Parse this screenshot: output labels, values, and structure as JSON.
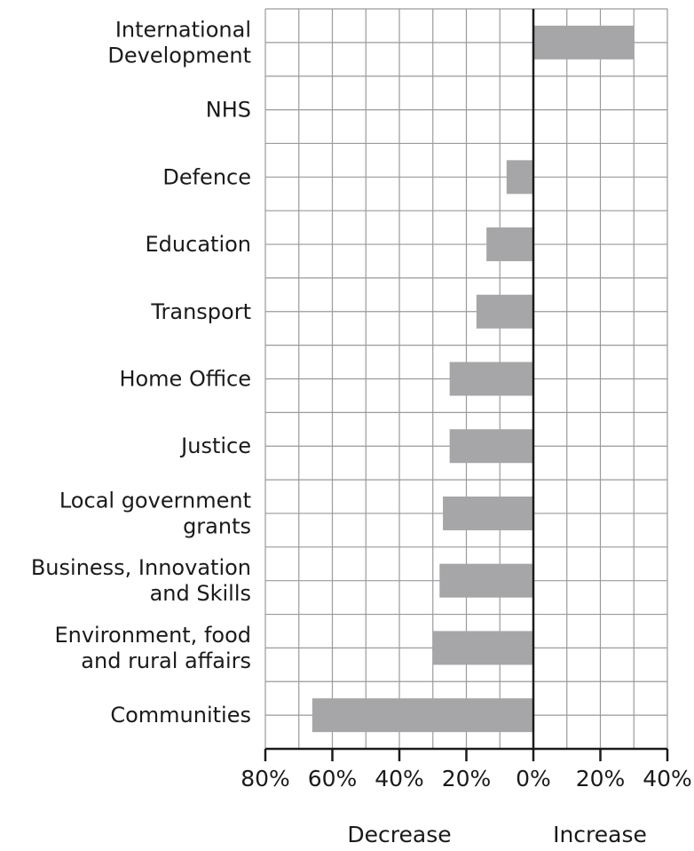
{
  "chart_data": {
    "type": "bar",
    "orientation": "horizontal",
    "categories": [
      [
        "International",
        "Development"
      ],
      [
        "NHS"
      ],
      [
        "Defence"
      ],
      [
        "Education"
      ],
      [
        "Transport"
      ],
      [
        "Home Office"
      ],
      [
        "Justice"
      ],
      [
        "Local government",
        "grants"
      ],
      [
        "Business, Innovation",
        "and Skills"
      ],
      [
        "Environment, food",
        "and rural affairs"
      ],
      [
        "Communities"
      ]
    ],
    "values": [
      30,
      0,
      -8,
      -14,
      -17,
      -25,
      -25,
      -27,
      -28,
      -30,
      -66
    ],
    "xlim": [
      -80,
      40
    ],
    "xticks": [
      -80,
      -60,
      -40,
      -20,
      0,
      20,
      40
    ],
    "xtick_labels": [
      "80%",
      "60%",
      "40%",
      "20%",
      "0%",
      "20%",
      "40%"
    ],
    "direction_labels": {
      "negative": "Decrease",
      "positive": "Increase"
    },
    "grid": true,
    "bar_color": "#a6a6a8",
    "grid_color": "#9a9a9a",
    "axis_color": "#1a1a1a"
  }
}
